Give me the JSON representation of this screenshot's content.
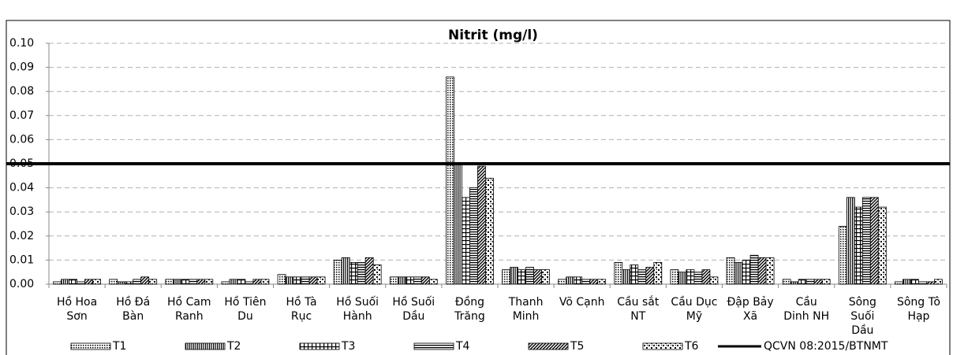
{
  "chart_data": {
    "type": "bar",
    "title": "Nitrit (mg/l)",
    "categories": [
      "Hồ Hoa Sơn",
      "Hồ Đá Bàn",
      "Hồ Cam Ranh",
      "Hồ Tiên Du",
      "Hồ Tà Rục",
      "Hồ Suối Hành",
      "Hồ Suối Dầu",
      "Đồng Trăng",
      "Thanh Minh",
      "Võ Cạnh",
      "Cầu sắt NT",
      "Cầu Dục Mỹ",
      "Đập Bảy Xã",
      "Cầu Dinh NH",
      "Sông Suối Dầu",
      "Sông Tô Hạp"
    ],
    "series": [
      {
        "name": "T1",
        "color": "#000000",
        "pattern": "dots",
        "values": [
          0.001,
          0.002,
          0.002,
          0.001,
          0.004,
          0.01,
          0.003,
          0.086,
          0.006,
          0.002,
          0.009,
          0.006,
          0.011,
          0.002,
          0.024,
          0.001
        ]
      },
      {
        "name": "T2",
        "color": "#000000",
        "pattern": "vertical",
        "values": [
          0.002,
          0.001,
          0.002,
          0.002,
          0.003,
          0.011,
          0.003,
          0.05,
          0.007,
          0.003,
          0.006,
          0.005,
          0.009,
          0.001,
          0.036,
          0.002
        ]
      },
      {
        "name": "T3",
        "color": "#000000",
        "pattern": "grid",
        "values": [
          0.002,
          0.001,
          0.002,
          0.002,
          0.003,
          0.009,
          0.003,
          0.036,
          0.006,
          0.003,
          0.008,
          0.006,
          0.01,
          0.002,
          0.032,
          0.002
        ]
      },
      {
        "name": "T4",
        "color": "#000000",
        "pattern": "horizontal",
        "values": [
          0.001,
          0.002,
          0.002,
          0.001,
          0.003,
          0.009,
          0.003,
          0.04,
          0.007,
          0.002,
          0.006,
          0.005,
          0.012,
          0.002,
          0.036,
          0.001
        ]
      },
      {
        "name": "T5",
        "color": "#000000",
        "pattern": "diagonal",
        "values": [
          0.002,
          0.003,
          0.002,
          0.002,
          0.003,
          0.011,
          0.003,
          0.049,
          0.006,
          0.002,
          0.007,
          0.006,
          0.011,
          0.002,
          0.036,
          0.001
        ]
      },
      {
        "name": "T6",
        "color": "#000000",
        "pattern": "confetti",
        "values": [
          0.002,
          0.002,
          0.002,
          0.002,
          0.003,
          0.008,
          0.002,
          0.044,
          0.006,
          0.002,
          0.009,
          0.003,
          0.011,
          0.002,
          0.032,
          0.002
        ]
      }
    ],
    "reference_lines": [
      {
        "name": "QCVN 08:2015/BTNMT",
        "value": 0.05,
        "color": "#000000"
      }
    ],
    "ylim": [
      0,
      0.1
    ],
    "yticks": [
      {
        "value": 0,
        "label": "0.00"
      },
      0.01,
      0.02,
      0.03,
      0.04,
      0.05,
      0.06,
      0.07,
      0.08,
      0.09,
      {
        "value": 0.1,
        "label": "0.10"
      }
    ],
    "grid": true,
    "legend": "bottom"
  }
}
